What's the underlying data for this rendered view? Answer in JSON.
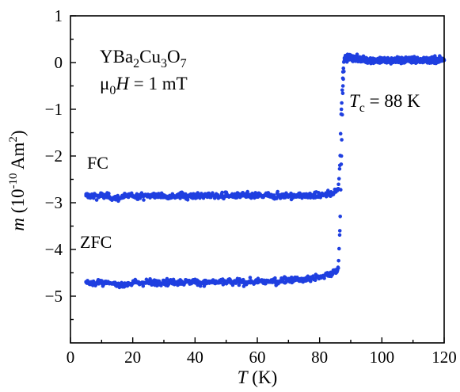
{
  "chart_data": {
    "type": "scatter",
    "xlabel": {
      "var": "T",
      "unit": " (K)"
    },
    "ylabel": {
      "var": "m",
      "unit_pre": " (10",
      "unit_exp": "-10",
      "unit_mid": " Am",
      "unit_exp2": "2",
      "unit_post": ")"
    },
    "xlim": [
      0,
      120
    ],
    "ylim": [
      -6,
      1
    ],
    "x_ticks": [
      "0",
      "20",
      "40",
      "60",
      "80",
      "100",
      "120"
    ],
    "y_ticks": [
      "1",
      "0",
      "−1",
      "−2",
      "−3",
      "−4",
      "−5"
    ],
    "annotations": {
      "material": [
        "YBa",
        "2",
        "Cu",
        "3",
        "O",
        "7"
      ],
      "field": {
        "mu": "μ",
        "sub0": "0",
        "H": "H",
        "rest": " = 1 mT"
      },
      "tc": {
        "T": "T",
        "sub": "c",
        "rest": " = 88 K"
      }
    },
    "marker_color": "#1f3fe0",
    "series": [
      {
        "name": "FC",
        "x": [
          5,
          10,
          15,
          20,
          25,
          30,
          35,
          40,
          45,
          50,
          55,
          60,
          65,
          70,
          75,
          80,
          84,
          86,
          86.5,
          87,
          87.5,
          88,
          90,
          95,
          100,
          105,
          110,
          115,
          120
        ],
        "y": [
          -2.85,
          -2.85,
          -2.9,
          -2.85,
          -2.85,
          -2.85,
          -2.85,
          -2.85,
          -2.85,
          -2.85,
          -2.85,
          -2.85,
          -2.85,
          -2.85,
          -2.85,
          -2.85,
          -2.8,
          -2.7,
          -2.2,
          -1.0,
          -0.2,
          0.1,
          0.1,
          0.05,
          0.05,
          0.05,
          0.05,
          0.05,
          0.05
        ]
      },
      {
        "name": "ZFC",
        "x": [
          5,
          10,
          15,
          20,
          25,
          30,
          35,
          40,
          45,
          50,
          55,
          60,
          65,
          70,
          75,
          80,
          84,
          86,
          86.5,
          87,
          87.5,
          88,
          90,
          95,
          100,
          105,
          110,
          115,
          120
        ],
        "y": [
          -4.7,
          -4.72,
          -4.75,
          -4.72,
          -4.7,
          -4.7,
          -4.7,
          -4.7,
          -4.7,
          -4.7,
          -4.7,
          -4.7,
          -4.68,
          -4.65,
          -4.65,
          -4.6,
          -4.5,
          -4.4,
          -3.6,
          -2.0,
          -0.5,
          0.05,
          0.1,
          0.05,
          0.05,
          0.05,
          0.05,
          0.05,
          0.05
        ]
      }
    ]
  }
}
